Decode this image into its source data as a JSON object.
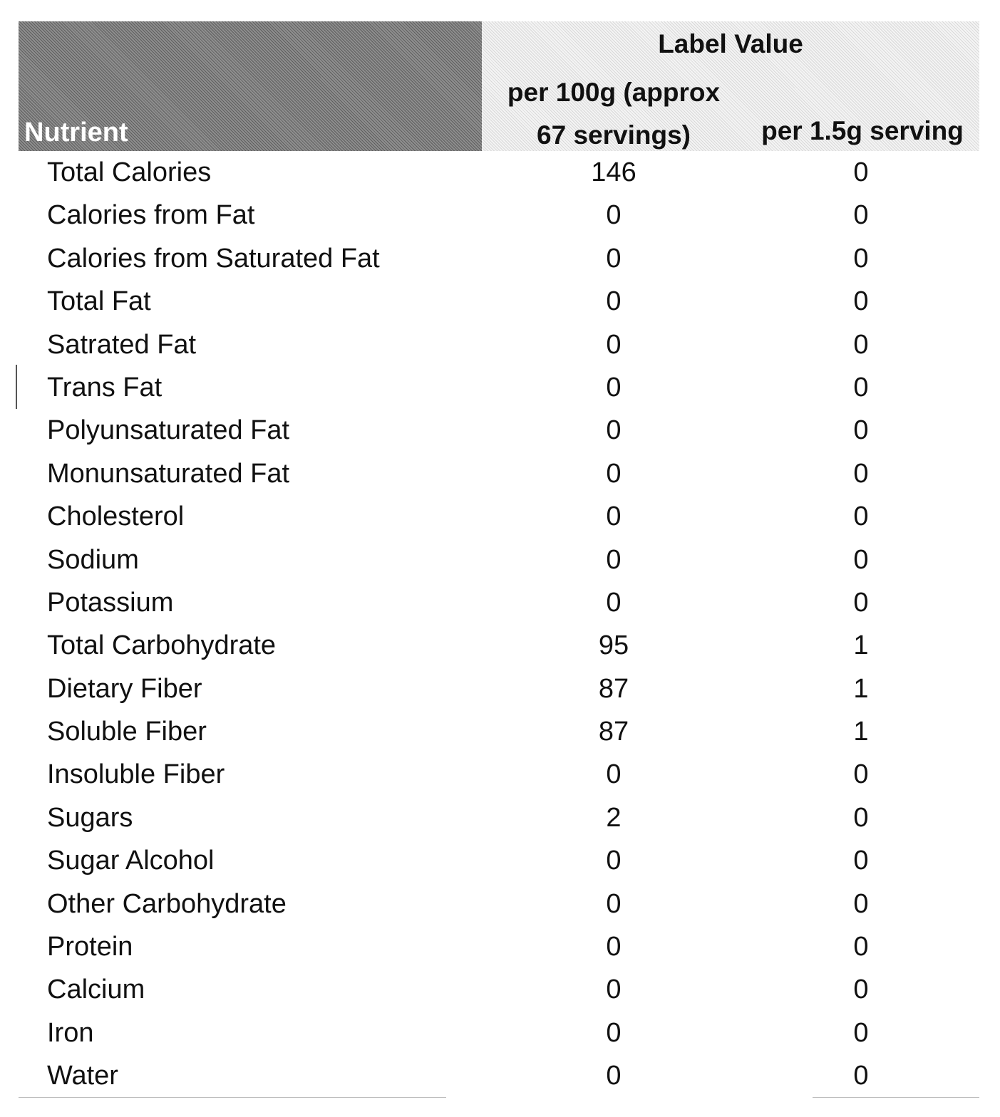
{
  "table": {
    "header": {
      "nutrient": "Nutrient",
      "group": "Label Value",
      "col1_line1": "per 100g (approx",
      "col1_line2": "67 servings)",
      "col2": "per 1.5g serving"
    },
    "rows": [
      {
        "name": "Total Calories",
        "per100g": "146",
        "perServing": "0"
      },
      {
        "name": "Calories from Fat",
        "per100g": "0",
        "perServing": "0"
      },
      {
        "name": "Calories from Saturated Fat",
        "per100g": "0",
        "perServing": "0"
      },
      {
        "name": "Total Fat",
        "per100g": "0",
        "perServing": "0"
      },
      {
        "name": "Satrated Fat",
        "per100g": "0",
        "perServing": "0"
      },
      {
        "name": "Trans Fat",
        "per100g": "0",
        "perServing": "0"
      },
      {
        "name": "Polyunsaturated Fat",
        "per100g": "0",
        "perServing": "0"
      },
      {
        "name": "Monunsaturated Fat",
        "per100g": "0",
        "perServing": "0"
      },
      {
        "name": "Cholesterol",
        "per100g": "0",
        "perServing": "0"
      },
      {
        "name": "Sodium",
        "per100g": "0",
        "perServing": "0"
      },
      {
        "name": "Potassium",
        "per100g": "0",
        "perServing": "0"
      },
      {
        "name": "Total Carbohydrate",
        "per100g": "95",
        "perServing": "1"
      },
      {
        "name": "Dietary Fiber",
        "per100g": "87",
        "perServing": "1"
      },
      {
        "name": "Soluble Fiber",
        "per100g": "87",
        "perServing": "1"
      },
      {
        "name": "Insoluble Fiber",
        "per100g": "0",
        "perServing": "0"
      },
      {
        "name": "Sugars",
        "per100g": "2",
        "perServing": "0"
      },
      {
        "name": "Sugar Alcohol",
        "per100g": "0",
        "perServing": "0"
      },
      {
        "name": "Other Carbohydrate",
        "per100g": "0",
        "perServing": "0"
      },
      {
        "name": "Protein",
        "per100g": "0",
        "perServing": "0"
      },
      {
        "name": "Calcium",
        "per100g": "0",
        "perServing": "0"
      },
      {
        "name": "Iron",
        "per100g": "0",
        "perServing": "0"
      },
      {
        "name": "Water",
        "per100g": "0",
        "perServing": "0"
      }
    ]
  }
}
